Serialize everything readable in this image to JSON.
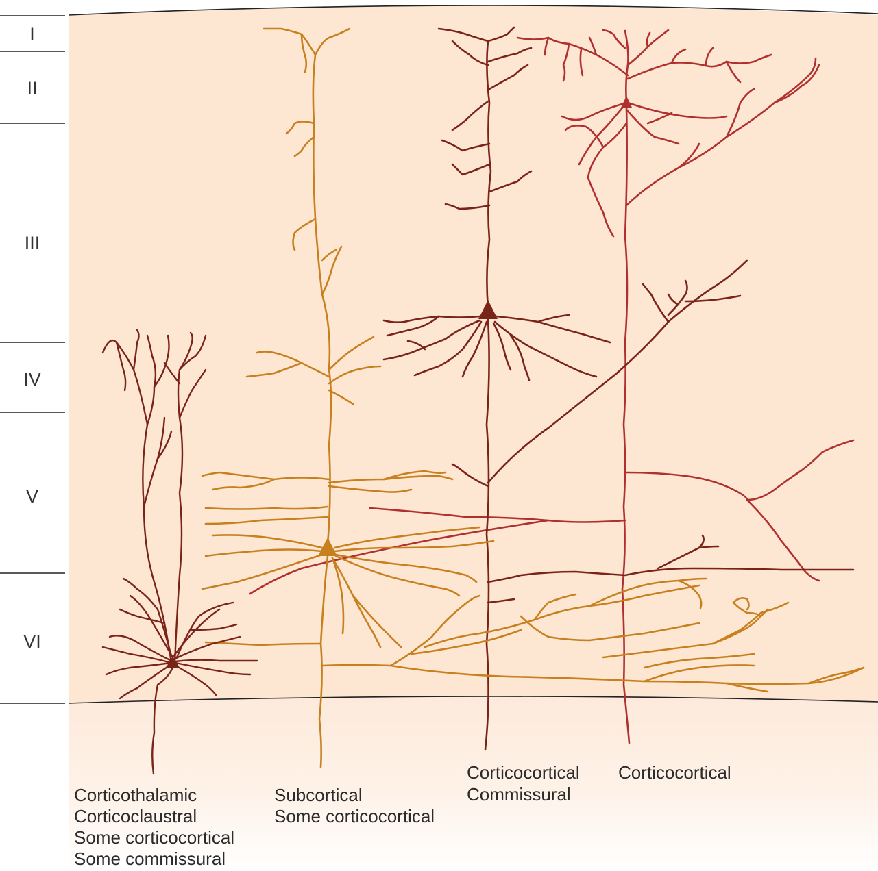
{
  "layers": [
    "I",
    "II",
    "III",
    "IV",
    "V",
    "VI"
  ],
  "neurons": [
    {
      "id": "corticothalamic",
      "color": "#7a2319",
      "captions": [
        "Corticothalamic",
        "Corticoclaustral",
        "Some corticocortical",
        "Some commissural"
      ]
    },
    {
      "id": "subcortical",
      "color": "#c8801e",
      "captions": [
        "Subcortical",
        "Some corticocortical"
      ]
    },
    {
      "id": "corticocortical-commissural",
      "color": "#7a2319",
      "captions": [
        "Corticocortical",
        "Commissural"
      ]
    },
    {
      "id": "corticocortical",
      "color": "#b0302e",
      "captions": [
        "Corticocortical"
      ]
    }
  ],
  "colors": {
    "cortex_fill": "#fde6d2",
    "white_matter_fill": "#fef0e4",
    "boundary": "#222222"
  }
}
